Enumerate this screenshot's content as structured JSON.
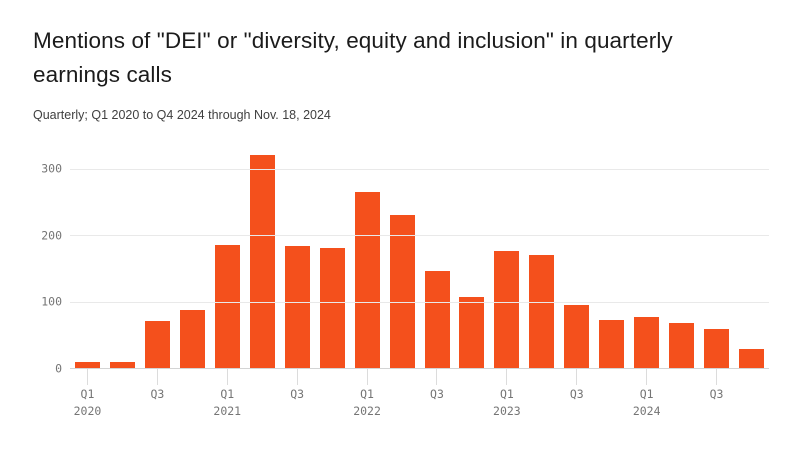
{
  "header": {
    "title_lines": [
      "Mentions of \"DEI\" or \"diversity, equity and inclusion\" in quarterly",
      "earnings calls"
    ],
    "subtitle": "Quarterly; Q1 2020 to Q4 2024 through Nov. 18, 2024"
  },
  "chart_data": {
    "type": "bar",
    "title": "Mentions of \"DEI\" or \"diversity, equity and inclusion\" in quarterly earnings calls",
    "subtitle": "Quarterly; Q1 2020 to Q4 2024 through Nov. 18, 2024",
    "categories": [
      "Q1 2020",
      "Q2 2020",
      "Q3 2020",
      "Q4 2020",
      "Q1 2021",
      "Q2 2021",
      "Q3 2021",
      "Q4 2021",
      "Q1 2022",
      "Q2 2022",
      "Q3 2022",
      "Q4 2022",
      "Q1 2023",
      "Q2 2023",
      "Q3 2023",
      "Q4 2023",
      "Q1 2024",
      "Q2 2024",
      "Q3 2024",
      "Q4 2024"
    ],
    "values": [
      10,
      10,
      73,
      89,
      187,
      322,
      186,
      183,
      267,
      232,
      148,
      108,
      178,
      172,
      97,
      74,
      78,
      70,
      60,
      30
    ],
    "xlabel": "",
    "ylabel": "",
    "ylim": [
      0,
      330
    ],
    "y_ticks": [
      0,
      100,
      200,
      300
    ],
    "x_ticks": [
      {
        "index": 0,
        "label": "Q1",
        "year": "2020"
      },
      {
        "index": 2,
        "label": "Q3"
      },
      {
        "index": 4,
        "label": "Q1",
        "year": "2021"
      },
      {
        "index": 6,
        "label": "Q3"
      },
      {
        "index": 8,
        "label": "Q1",
        "year": "2022"
      },
      {
        "index": 10,
        "label": "Q3"
      },
      {
        "index": 12,
        "label": "Q1",
        "year": "2023"
      },
      {
        "index": 14,
        "label": "Q3"
      },
      {
        "index": 16,
        "label": "Q1",
        "year": "2024"
      },
      {
        "index": 18,
        "label": "Q3"
      }
    ],
    "grid": "horizontal",
    "legend": "none",
    "colors": {
      "bar": "#f4501c",
      "gridline": "#e9e9e9",
      "baseline": "#d4d4d4",
      "tick_mark": "#dcdcdc",
      "axis_text": "#757575",
      "title_text": "#1b1b1b",
      "subtitle_text": "#404040",
      "background": "#ffffff"
    }
  }
}
